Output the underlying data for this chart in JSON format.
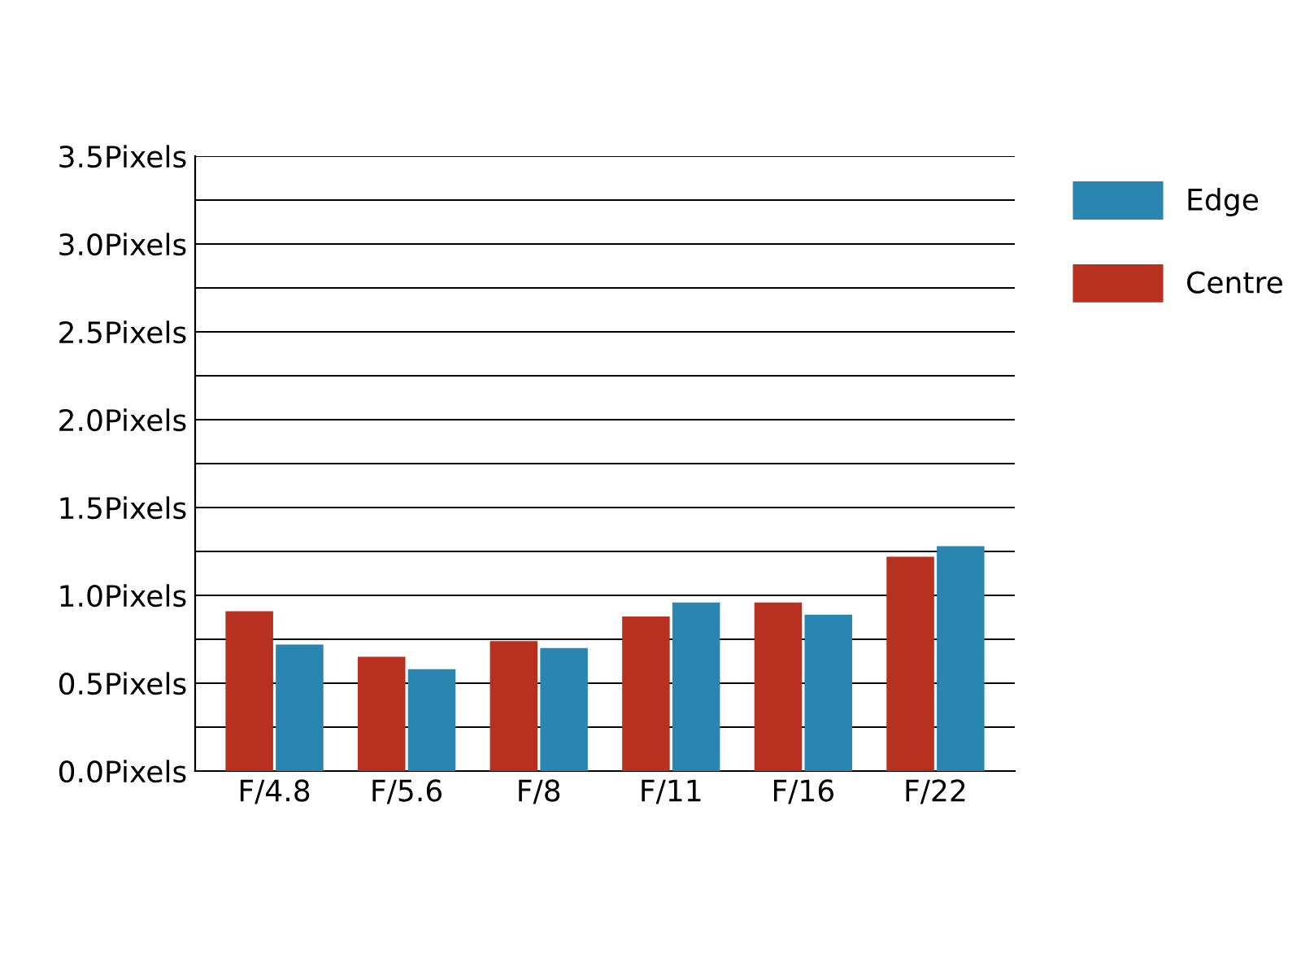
{
  "chart_data": {
    "type": "bar",
    "categories": [
      "F/4.8",
      "F/5.6",
      "F/8",
      "F/11",
      "F/16",
      "F/22"
    ],
    "series": [
      {
        "name": "Centre",
        "color": "#b8301f",
        "values": [
          0.91,
          0.65,
          0.74,
          0.88,
          0.96,
          1.22
        ]
      },
      {
        "name": "Edge",
        "color": "#2a86b0",
        "values": [
          0.72,
          0.58,
          0.7,
          0.96,
          0.89,
          1.28
        ]
      }
    ],
    "ylim": [
      0,
      3.5
    ],
    "yticks": [
      {
        "value": 0,
        "label": "0.0Pixels"
      },
      {
        "value": 0.25,
        "label": null
      },
      {
        "value": 0.5,
        "label": "0.5Pixels"
      },
      {
        "value": 0.75,
        "label": null
      },
      {
        "value": 1,
        "label": "1.0Pixels"
      },
      {
        "value": 1.25,
        "label": null
      },
      {
        "value": 1.5,
        "label": "1.5Pixels"
      },
      {
        "value": 1.75,
        "label": null
      },
      {
        "value": 2,
        "label": "2.0Pixels"
      },
      {
        "value": 2.25,
        "label": null
      },
      {
        "value": 2.5,
        "label": "2.5Pixels"
      },
      {
        "value": 2.75,
        "label": null
      },
      {
        "value": 3,
        "label": "3.0Pixels"
      },
      {
        "value": 3.25,
        "label": null
      },
      {
        "value": 3.5,
        "label": "3.5Pixels"
      }
    ],
    "grid": "y",
    "legend": "right"
  }
}
